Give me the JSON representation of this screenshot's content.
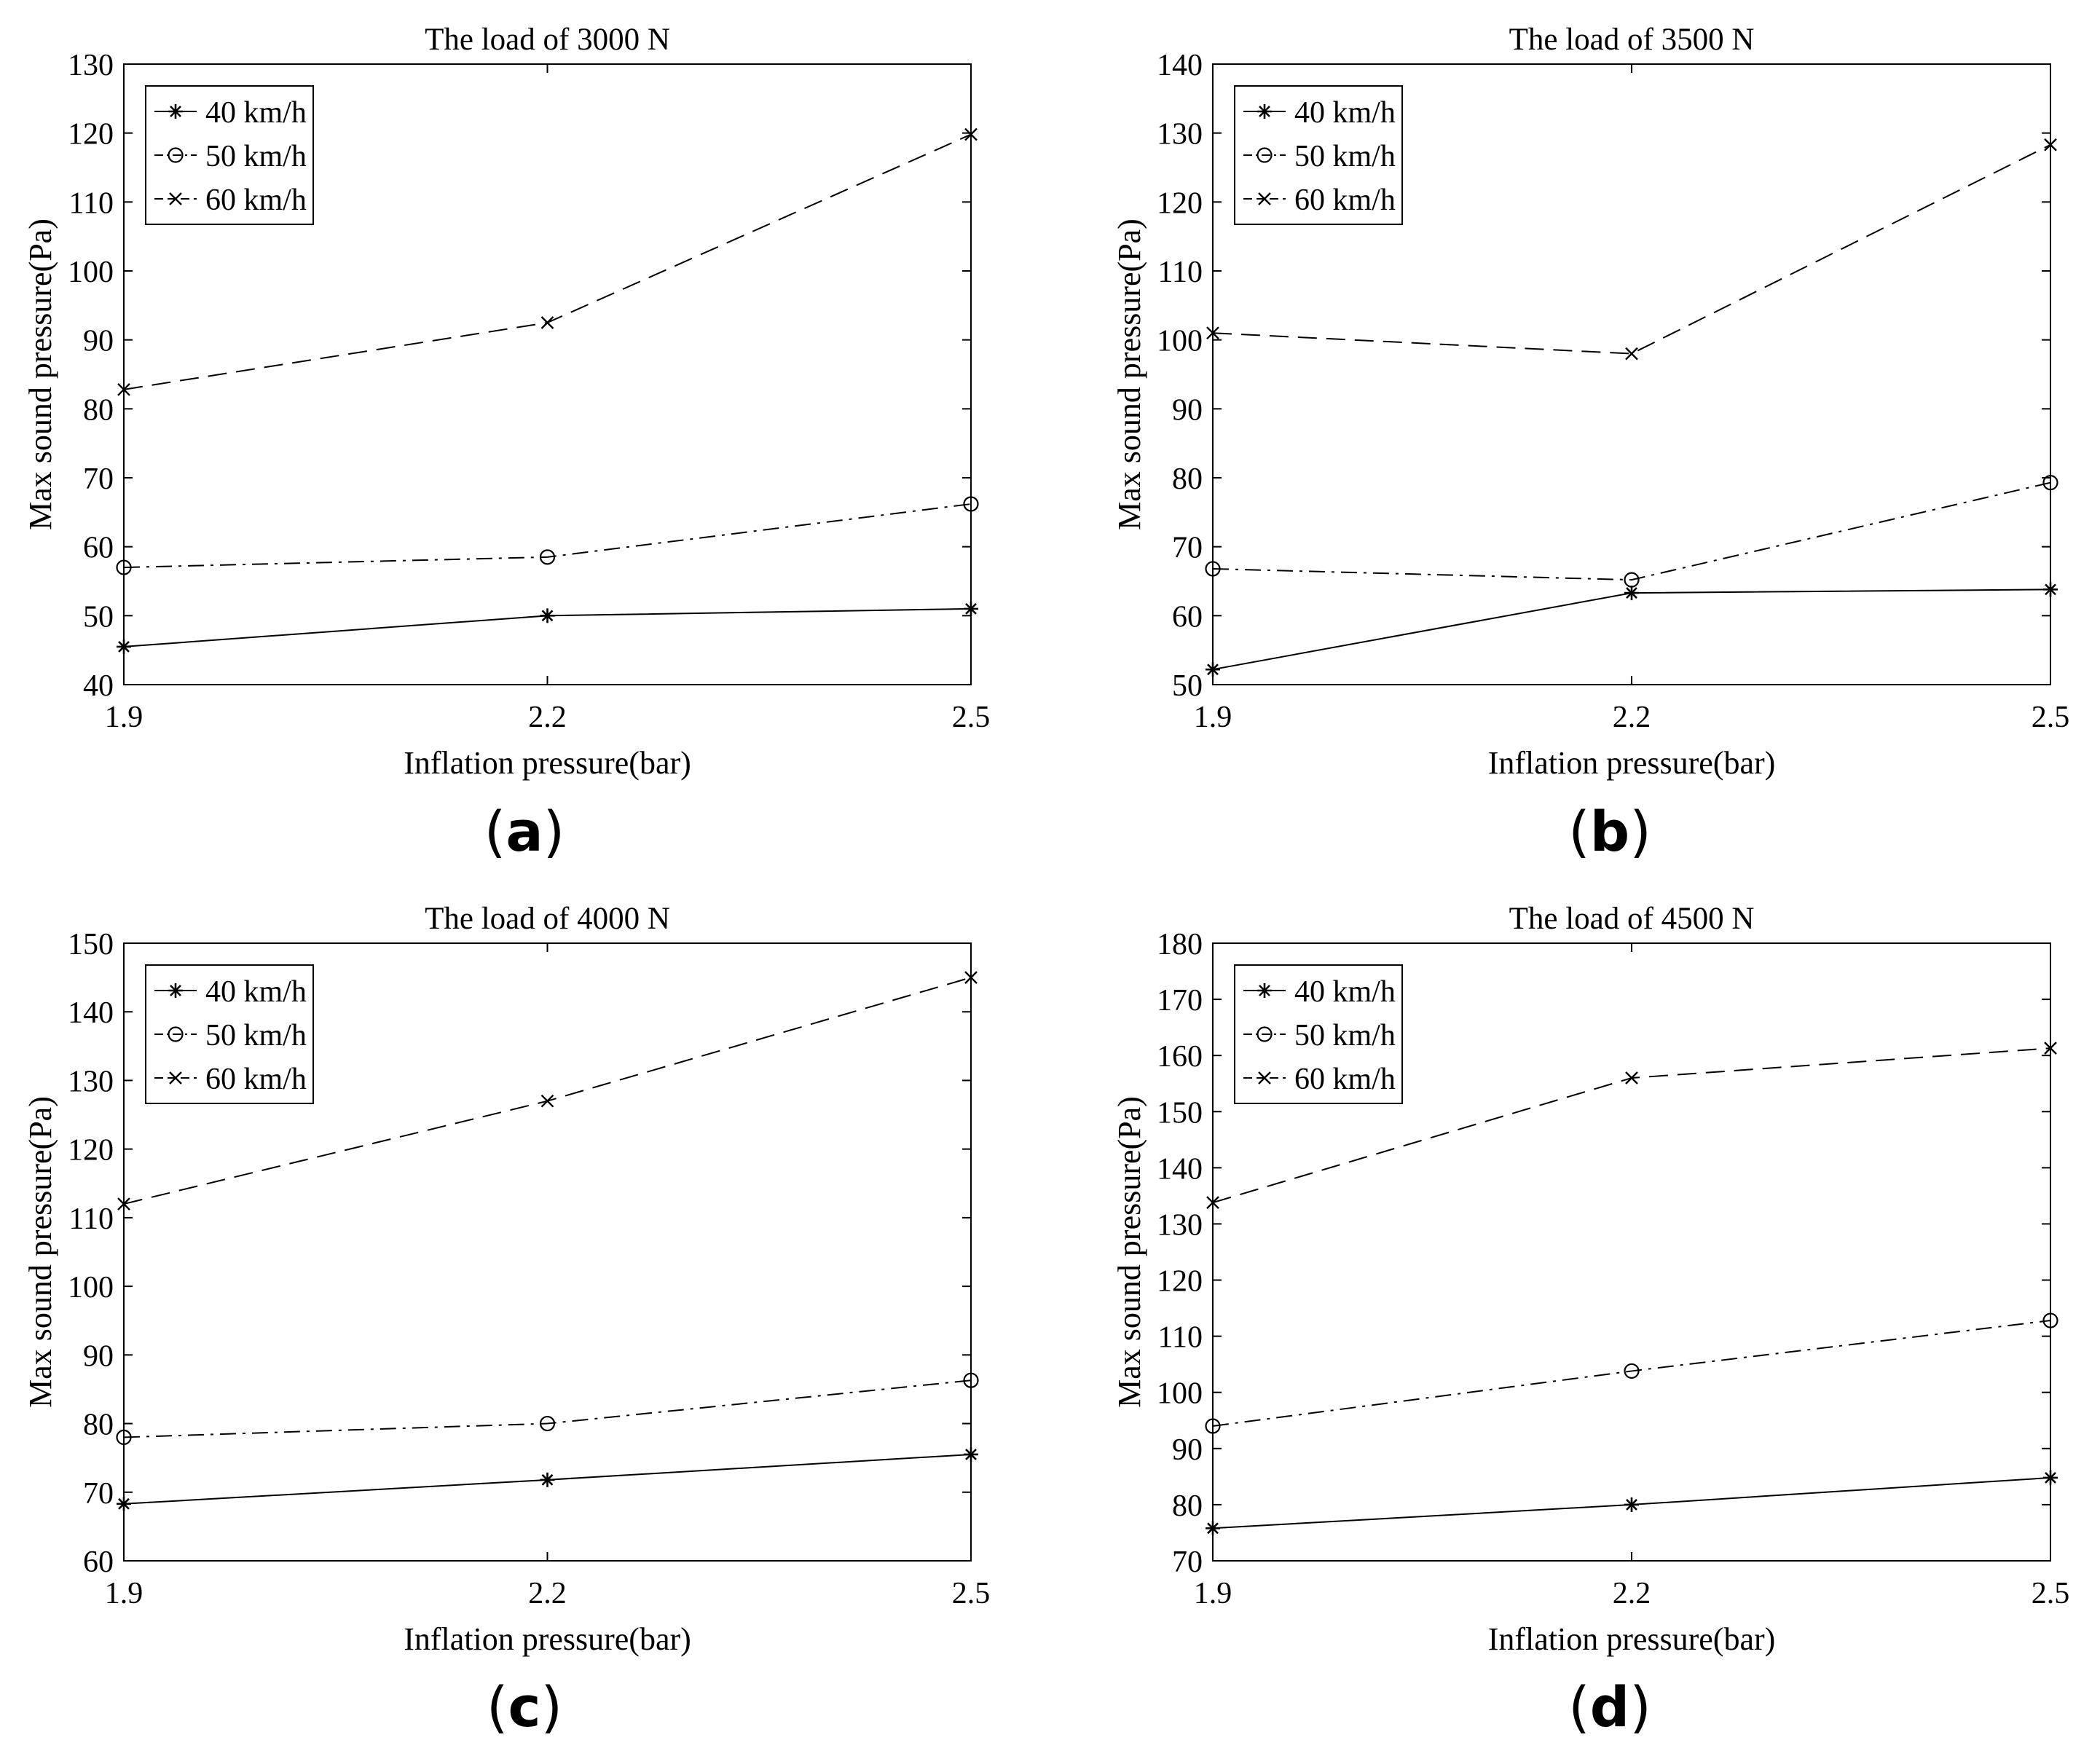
{
  "figure": {
    "panel_labels": [
      {
        "open": "(",
        "letter": "a",
        "close": ")"
      },
      {
        "open": "(",
        "letter": "b",
        "close": ")"
      },
      {
        "open": "(",
        "letter": "c",
        "close": ")"
      },
      {
        "open": "(",
        "letter": "d",
        "close": ")"
      }
    ]
  },
  "styles": {
    "line_color": "#000000",
    "background": "#ffffff",
    "series_styles": [
      {
        "marker": "asterisk",
        "dash": "solid"
      },
      {
        "marker": "circle",
        "dash": "dashdot"
      },
      {
        "marker": "cross",
        "dash": "dashed"
      }
    ]
  },
  "chart_data": [
    {
      "type": "line",
      "title": "The load of 3000 N",
      "xlabel": "Inflation pressure(bar)",
      "ylabel": "Max sound pressure(Pa)",
      "x": [
        1.9,
        2.2,
        2.5
      ],
      "xticks": [
        "1.9",
        "2.2",
        "2.5"
      ],
      "xlim": [
        1.9,
        2.5
      ],
      "ylim": [
        40,
        130
      ],
      "yticks": [
        40,
        50,
        60,
        70,
        80,
        90,
        100,
        110,
        120,
        130
      ],
      "legend_position": "top-left",
      "series": [
        {
          "name": "40 km/h",
          "values": [
            45.5,
            50.0,
            51.0
          ]
        },
        {
          "name": "50 km/h",
          "values": [
            57.0,
            58.5,
            66.2
          ]
        },
        {
          "name": "60 km/h",
          "values": [
            82.8,
            92.5,
            119.8
          ]
        }
      ]
    },
    {
      "type": "line",
      "title": "The load of 3500 N",
      "xlabel": "Inflation pressure(bar)",
      "ylabel": "Max sound pressure(Pa)",
      "x": [
        1.9,
        2.2,
        2.5
      ],
      "xticks": [
        "1.9",
        "2.2",
        "2.5"
      ],
      "xlim": [
        1.9,
        2.5
      ],
      "ylim": [
        50,
        140
      ],
      "yticks": [
        50,
        60,
        70,
        80,
        90,
        100,
        110,
        120,
        130,
        140
      ],
      "legend_position": "top-left",
      "series": [
        {
          "name": "40 km/h",
          "values": [
            52.2,
            63.3,
            63.8
          ]
        },
        {
          "name": "50 km/h",
          "values": [
            66.8,
            65.2,
            79.3
          ]
        },
        {
          "name": "60 km/h",
          "values": [
            101.0,
            98.0,
            128.3
          ]
        }
      ]
    },
    {
      "type": "line",
      "title": "The load of 4000 N",
      "xlabel": "Inflation pressure(bar)",
      "ylabel": "Max sound pressure(Pa)",
      "x": [
        1.9,
        2.2,
        2.5
      ],
      "xticks": [
        "1.9",
        "2.2",
        "2.5"
      ],
      "xlim": [
        1.9,
        2.5
      ],
      "ylim": [
        60,
        150
      ],
      "yticks": [
        60,
        70,
        80,
        90,
        100,
        110,
        120,
        130,
        140,
        150
      ],
      "legend_position": "top-left",
      "series": [
        {
          "name": "40 km/h",
          "values": [
            68.3,
            71.8,
            75.5
          ]
        },
        {
          "name": "50 km/h",
          "values": [
            78.0,
            80.0,
            86.3
          ]
        },
        {
          "name": "60 km/h",
          "values": [
            112.0,
            127.0,
            145.0
          ]
        }
      ]
    },
    {
      "type": "line",
      "title": "The load of 4500 N",
      "xlabel": "Inflation pressure(bar)",
      "ylabel": "Max sound pressure(Pa)",
      "x": [
        1.9,
        2.2,
        2.5
      ],
      "xticks": [
        "1.9",
        "2.2",
        "2.5"
      ],
      "xlim": [
        1.9,
        2.5
      ],
      "ylim": [
        70,
        180
      ],
      "yticks": [
        70,
        80,
        90,
        100,
        110,
        120,
        130,
        140,
        150,
        160,
        170,
        180
      ],
      "legend_position": "top-left",
      "series": [
        {
          "name": "40 km/h",
          "values": [
            75.8,
            80.0,
            84.8
          ]
        },
        {
          "name": "50 km/h",
          "values": [
            94.0,
            103.8,
            112.8
          ]
        },
        {
          "name": "60 km/h",
          "values": [
            133.8,
            156.0,
            161.3
          ]
        }
      ]
    }
  ]
}
